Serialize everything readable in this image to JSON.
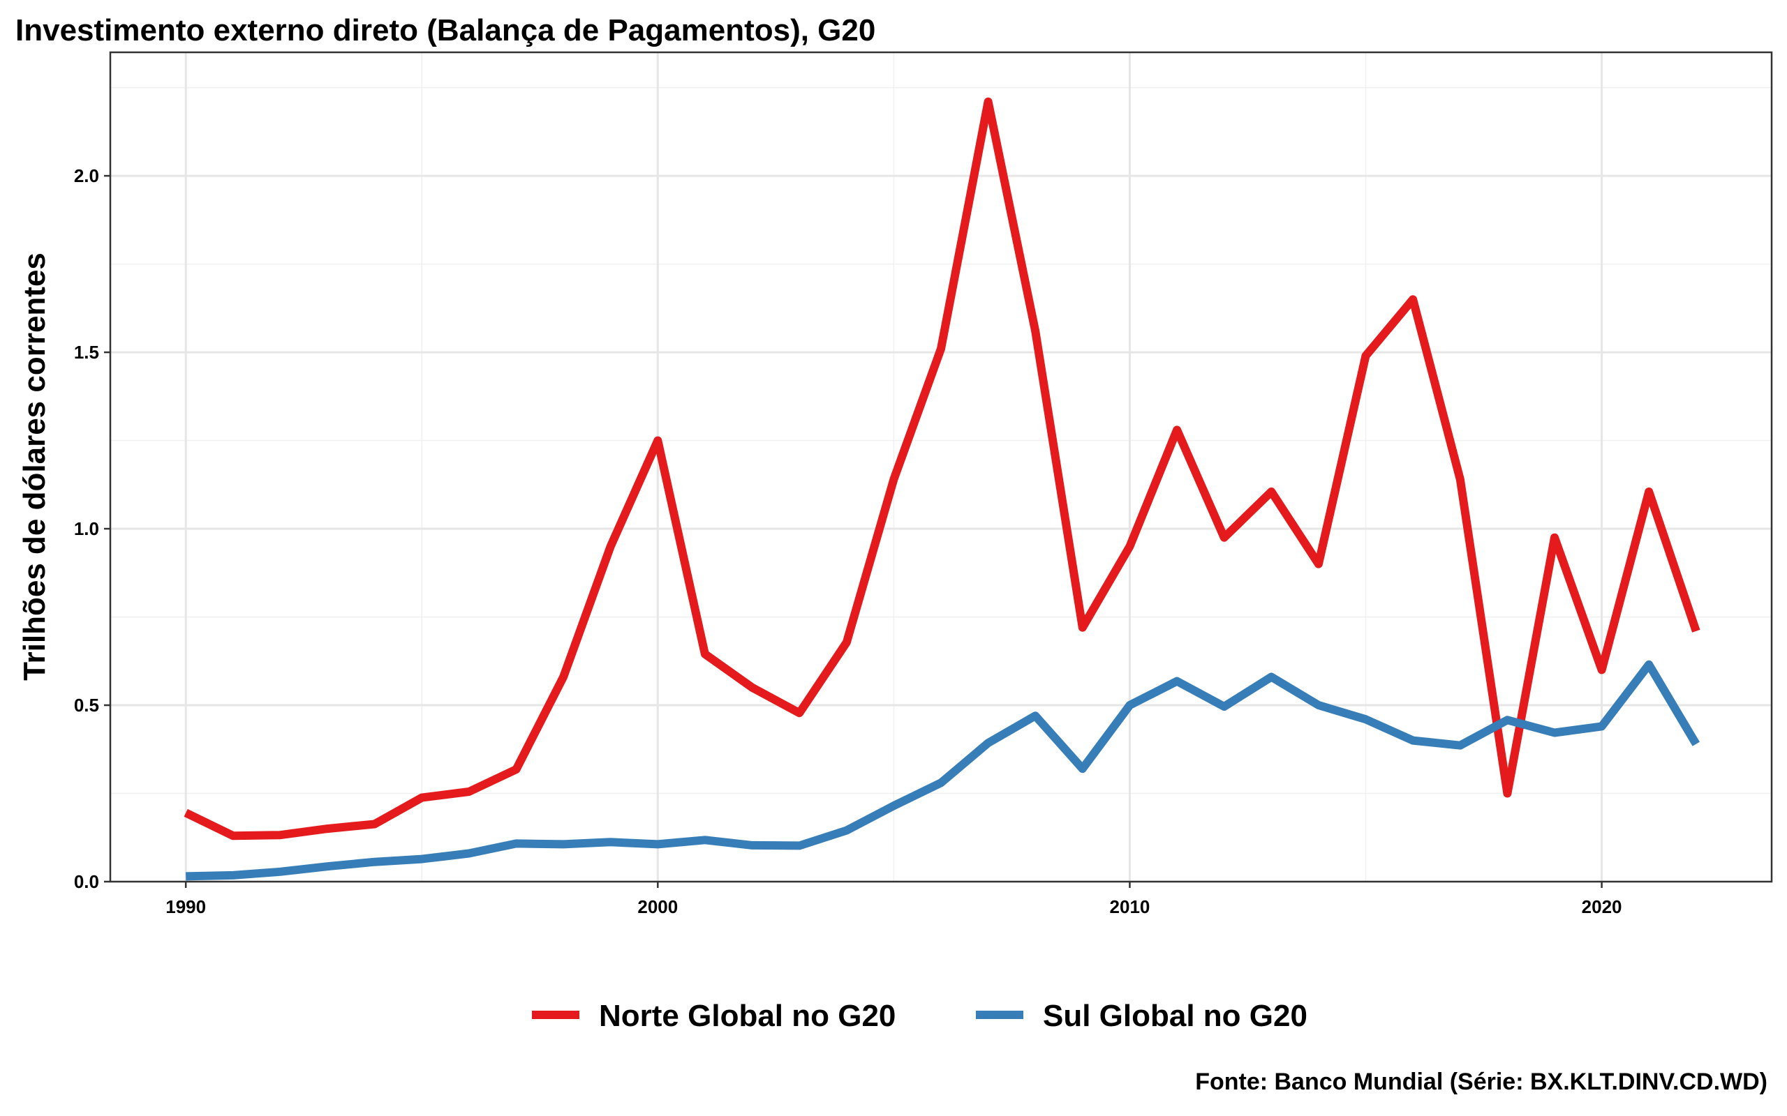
{
  "chart_data": {
    "type": "line",
    "title": "Investimento externo direto (Balança de Pagamentos), G20",
    "xlabel": "",
    "ylabel": "Trilhões de dólares correntes",
    "caption": "Fonte: Banco Mundial (Série: BX.KLT.DINV.CD.WD)",
    "xlim": [
      1988.4,
      2023.6
    ],
    "ylim": [
      0,
      2.35
    ],
    "x_ticks": [
      1990,
      2000,
      2010,
      2020
    ],
    "x_tick_labels": [
      "1990",
      "2000",
      "2010",
      "2020"
    ],
    "y_ticks": [
      0,
      0.5,
      1.0,
      1.5,
      2.0
    ],
    "y_tick_labels": [
      "0.0",
      "0.5",
      "1.0",
      "1.5",
      "2.0"
    ],
    "grid": true,
    "legend_position": "bottom",
    "x": [
      1990,
      1991,
      1992,
      1993,
      1994,
      1995,
      1996,
      1997,
      1998,
      1999,
      2000,
      2001,
      2002,
      2003,
      2004,
      2005,
      2006,
      2007,
      2008,
      2009,
      2010,
      2011,
      2012,
      2013,
      2014,
      2015,
      2016,
      2017,
      2018,
      2019,
      2020,
      2021,
      2022
    ],
    "series": [
      {
        "name": "Norte Global no G20",
        "color": "#e41a1c",
        "values": [
          0.195,
          0.13,
          0.132,
          0.15,
          0.163,
          0.238,
          0.255,
          0.318,
          0.58,
          0.95,
          1.25,
          0.645,
          0.55,
          0.478,
          0.678,
          1.14,
          1.51,
          2.21,
          1.56,
          0.72,
          0.95,
          1.28,
          0.975,
          1.105,
          0.9,
          1.49,
          1.65,
          1.14,
          0.25,
          0.975,
          0.6,
          1.105,
          0.71
        ]
      },
      {
        "name": "Sul Global no G20",
        "color": "#377eb8",
        "values": [
          0.015,
          0.018,
          0.028,
          0.043,
          0.056,
          0.064,
          0.08,
          0.108,
          0.106,
          0.112,
          0.106,
          0.118,
          0.103,
          0.102,
          0.145,
          0.215,
          0.28,
          0.393,
          0.47,
          0.32,
          0.5,
          0.568,
          0.496,
          0.58,
          0.5,
          0.46,
          0.4,
          0.386,
          0.458,
          0.422,
          0.44,
          0.615,
          0.39
        ]
      }
    ]
  }
}
